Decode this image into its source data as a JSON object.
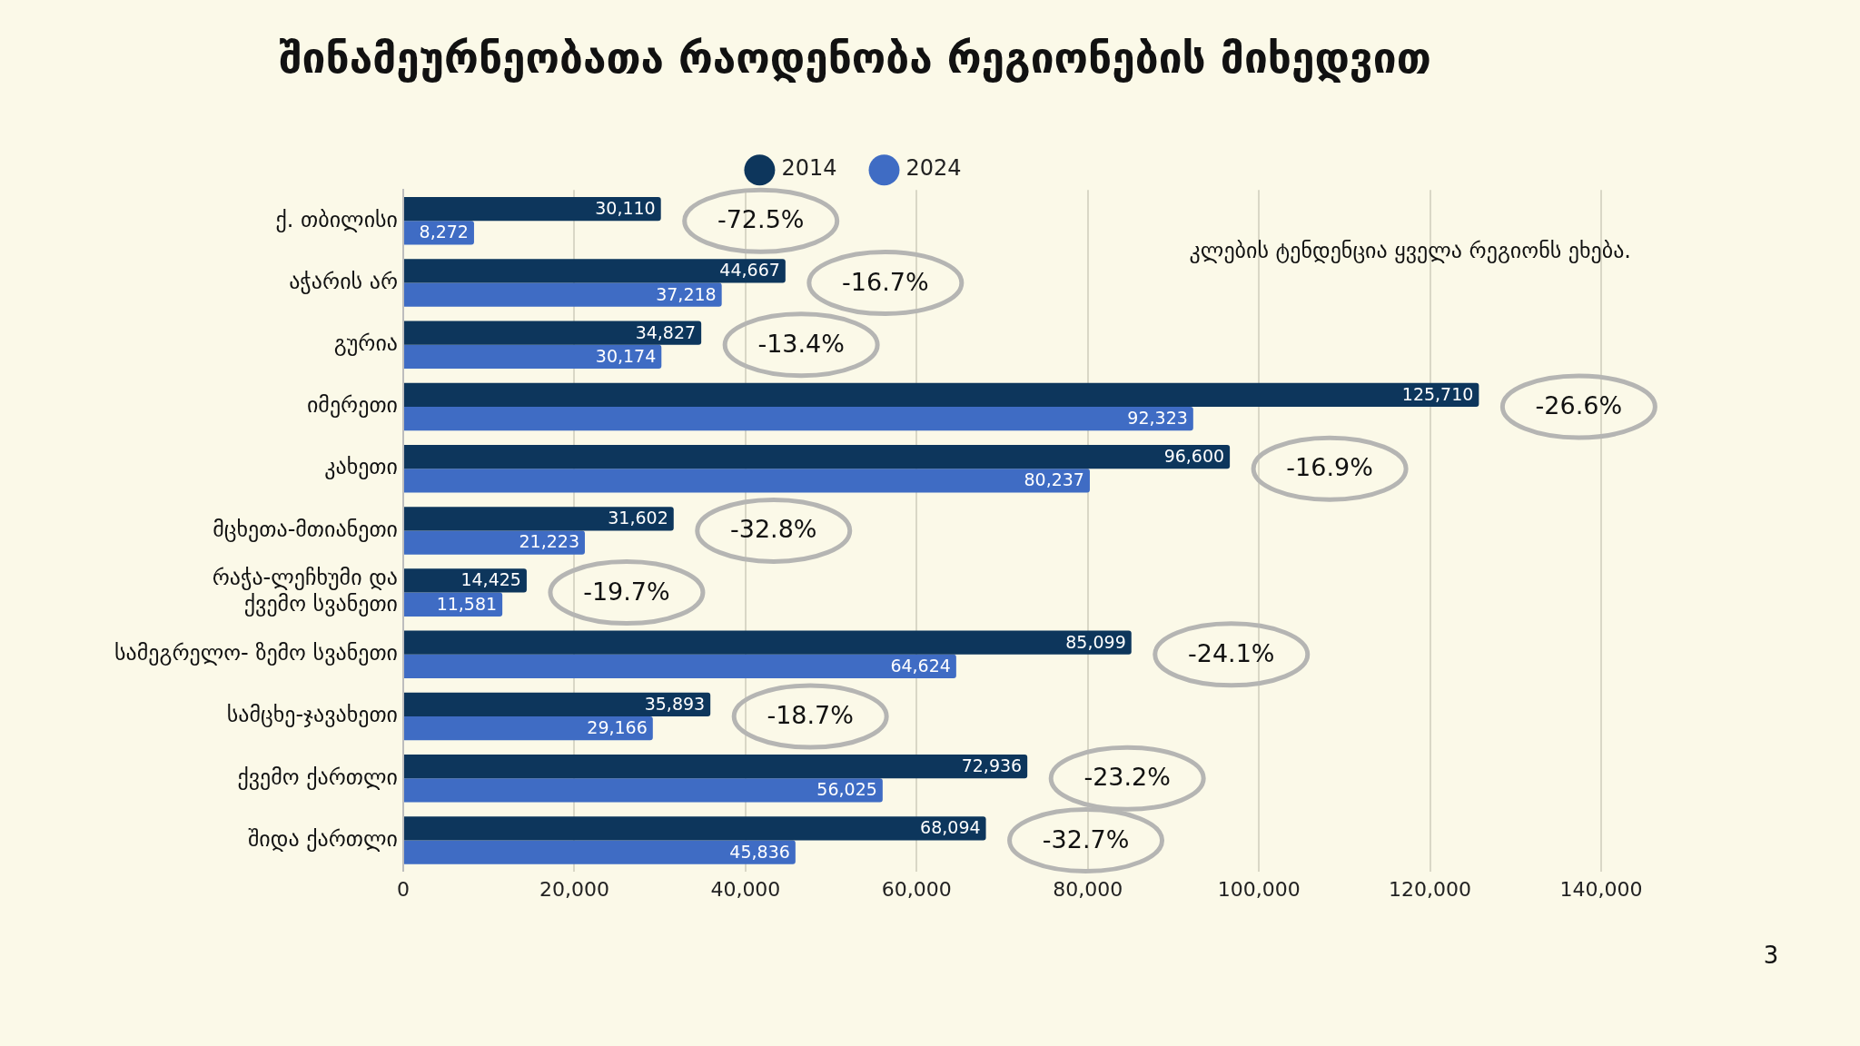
{
  "chart_data": {
    "type": "bar",
    "orientation": "horizontal",
    "title": "შინამეურნეობათა რაოდენობა რეგიონების მიხედვით",
    "categories": [
      "ქ. თბილისი",
      "აჭარის არ",
      "გურია",
      "იმერეთი",
      "კახეთი",
      "მცხეთა-მთიანეთი",
      "რაჭა-ლეჩხუმი და\nქვემო სვანეთი",
      "სამეგრელო- ზემო სვანეთი",
      "სამცხე-ჯავახეთი",
      "ქვემო ქართლი",
      "შიდა ქართლი"
    ],
    "series": [
      {
        "name": "2014",
        "color": "#0d365c",
        "values": [
          30110,
          44667,
          34827,
          125710,
          96600,
          31602,
          14425,
          85099,
          35893,
          72936,
          68094
        ],
        "value_labels": [
          "30,110",
          "44,667",
          "34,827",
          "125,710",
          "96,600",
          "31,602",
          "14,425",
          "85,099",
          "35,893",
          "72,936",
          "68,094"
        ]
      },
      {
        "name": "2024",
        "color": "#3f6cc4",
        "values": [
          8272,
          37218,
          30174,
          92323,
          80237,
          21223,
          11581,
          64624,
          29166,
          56025,
          45836
        ],
        "value_labels": [
          "8,272",
          "37,218",
          "30,174",
          "92,323",
          "80,237",
          "21,223",
          "11,581",
          "64,624",
          "29,166",
          "56,025",
          "45,836"
        ]
      }
    ],
    "xlim": [
      0,
      140000
    ],
    "xticks": [
      0,
      {
        "value": 20000,
        "label": "20,000"
      },
      {
        "value": 40000,
        "label": "40,000"
      },
      {
        "value": 60000,
        "label": "60,000"
      },
      {
        "value": 80000,
        "label": "80,000"
      },
      {
        "value": 100000,
        "label": "100,000"
      },
      {
        "value": 120000,
        "label": "120,000"
      },
      {
        "value": 140000,
        "label": "140,000"
      }
    ],
    "grid": "x",
    "legend": "top",
    "annotations": [
      "-72.5%",
      "-16.7%",
      "-13.4%",
      "-26.6%",
      "-16.9%",
      "-32.8%",
      "-19.7%",
      "-24.1%",
      "-18.7%",
      "-23.2%",
      "-32.7%",
      "კლების ტენდენცია ყველა რეგიონს ეხება.",
      "3"
    ]
  }
}
